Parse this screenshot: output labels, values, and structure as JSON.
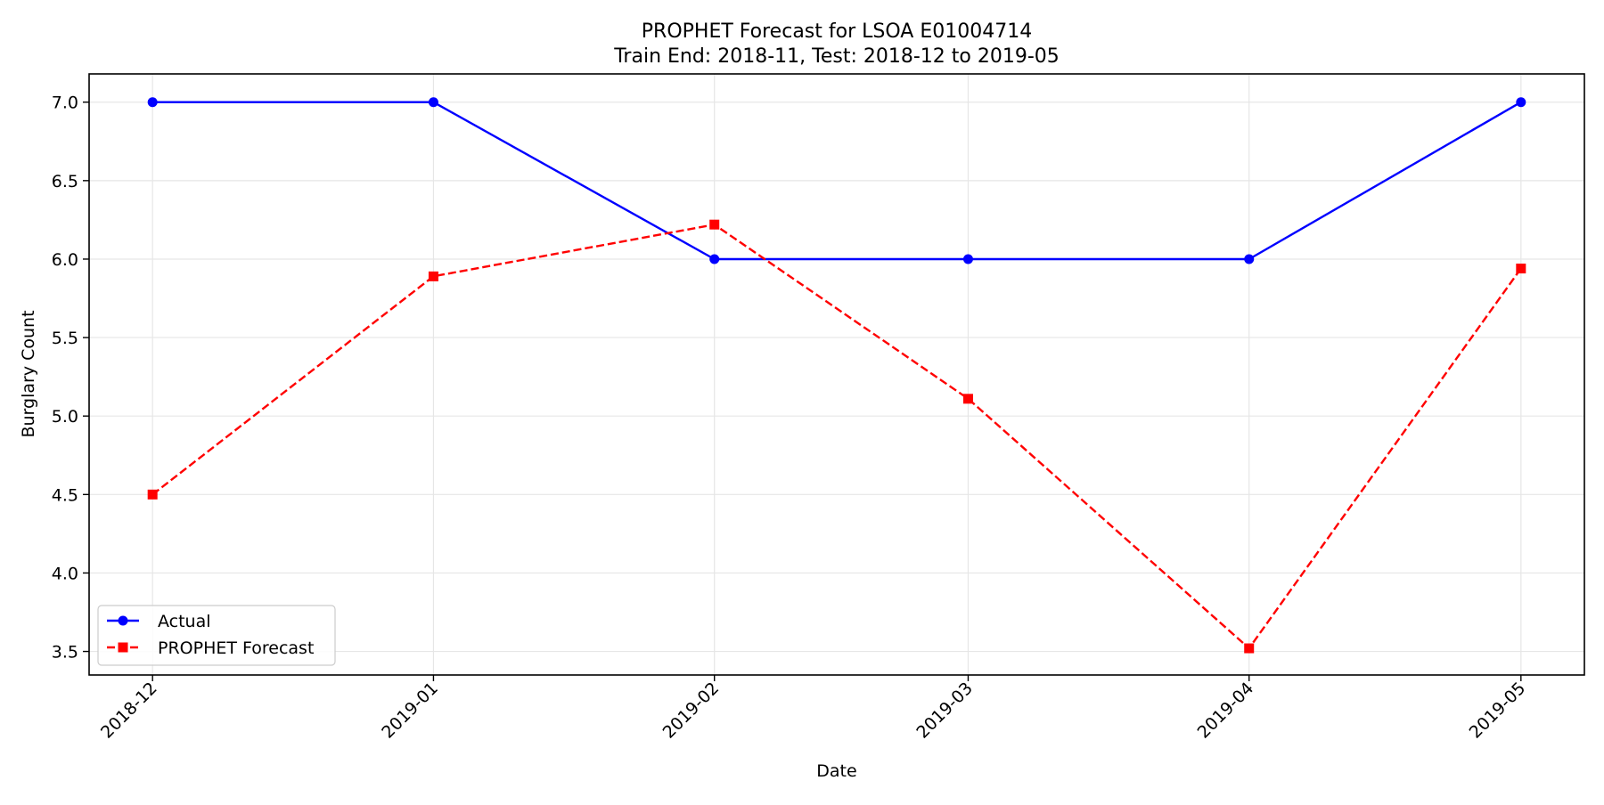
{
  "chart_data": {
    "type": "line",
    "title": "PROPHET Forecast for LSOA E01004714",
    "subtitle": "Train End: 2018-11, Test: 2018-12 to 2019-05",
    "xlabel": "Date",
    "ylabel": "Burglary Count",
    "x": [
      "2018-12-01",
      "2019-01-01",
      "2019-02-01",
      "2019-03-01",
      "2019-04-01",
      "2019-05-01"
    ],
    "xlim": [
      "2018-11-24",
      "2019-05-08"
    ],
    "x_tick_labels": [
      "2018-12",
      "2019-01",
      "2019-02",
      "2019-03",
      "2019-04",
      "2019-05"
    ],
    "ylim": [
      3.35,
      7.18
    ],
    "y_ticks": [
      3.5,
      4.0,
      4.5,
      5.0,
      5.5,
      6.0,
      6.5,
      7.0
    ],
    "y_tick_labels": [
      "3.5",
      "4.0",
      "4.5",
      "5.0",
      "5.5",
      "6.0",
      "6.5",
      "7.0"
    ],
    "grid": true,
    "legend_position": "lower-left",
    "series": [
      {
        "name": "Actual",
        "values": [
          7.0,
          7.0,
          6.0,
          6.0,
          6.0,
          7.0
        ],
        "color": "#0000ff",
        "line_style": "solid",
        "marker": "circle"
      },
      {
        "name": "PROPHET Forecast",
        "values": [
          4.5,
          5.89,
          6.22,
          5.11,
          3.52,
          5.94
        ],
        "color": "#ff0000",
        "line_style": "dashed",
        "marker": "square"
      }
    ]
  }
}
